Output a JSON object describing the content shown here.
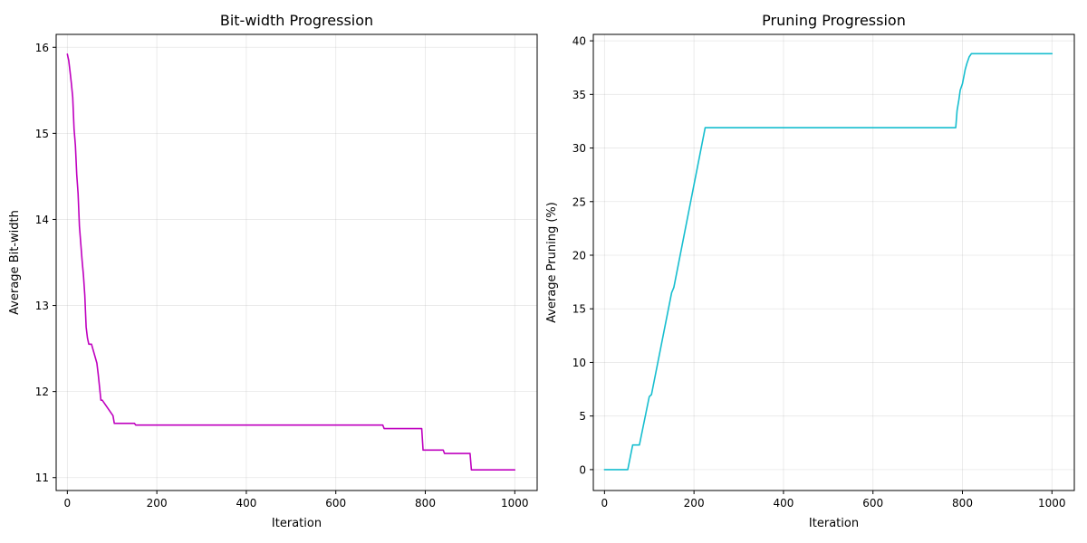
{
  "chart_data": [
    {
      "type": "line",
      "title": "Bit-width Progression",
      "xlabel": "Iteration",
      "ylabel": "Average Bit-width",
      "xlim": [
        -25,
        1050
      ],
      "ylim": [
        10.85,
        16.15
      ],
      "xticks": [
        0,
        200,
        400,
        600,
        800,
        1000
      ],
      "yticks": [
        11,
        12,
        13,
        14,
        15,
        16
      ],
      "grid": true,
      "series": [
        {
          "color": "#bf00bf",
          "step": true,
          "x": [
            0,
            3,
            6,
            9,
            12,
            15,
            18,
            21,
            24,
            27,
            30,
            33,
            36,
            39,
            42,
            45,
            48,
            51,
            54,
            66,
            69,
            72,
            75,
            78,
            102,
            105,
            150,
            153,
            705,
            708,
            792,
            795,
            840,
            843,
            900,
            903,
            1000
          ],
          "y": [
            15.92,
            15.85,
            15.72,
            15.58,
            15.42,
            15.05,
            14.86,
            14.52,
            14.3,
            13.92,
            13.72,
            13.52,
            13.35,
            13.12,
            12.75,
            12.62,
            12.55,
            12.55,
            12.55,
            12.33,
            12.2,
            12.05,
            11.9,
            11.9,
            11.72,
            11.63,
            11.63,
            11.61,
            11.61,
            11.57,
            11.57,
            11.32,
            11.32,
            11.28,
            11.28,
            11.09,
            11.09
          ]
        }
      ]
    },
    {
      "type": "line",
      "title": "Pruning Progression",
      "xlabel": "Iteration",
      "ylabel": "Average Pruning (%)",
      "xlim": [
        -25,
        1050
      ],
      "ylim": [
        -1.95,
        40.6
      ],
      "xticks": [
        0,
        200,
        400,
        600,
        800,
        1000
      ],
      "yticks": [
        0,
        5,
        10,
        15,
        20,
        25,
        30,
        35,
        40
      ],
      "grid": true,
      "series": [
        {
          "color": "#17becf",
          "step": false,
          "x": [
            0,
            52,
            63,
            75,
            78,
            100,
            105,
            150,
            155,
            225,
            228,
            785,
            788,
            792,
            795,
            800,
            806,
            810,
            815,
            820,
            1000
          ],
          "y": [
            0,
            0,
            2.3,
            2.3,
            2.3,
            6.8,
            7.0,
            16.5,
            17.0,
            31.9,
            31.9,
            31.9,
            33.5,
            34.5,
            35.4,
            36.0,
            37.3,
            37.9,
            38.5,
            38.8,
            38.8
          ]
        }
      ]
    }
  ]
}
